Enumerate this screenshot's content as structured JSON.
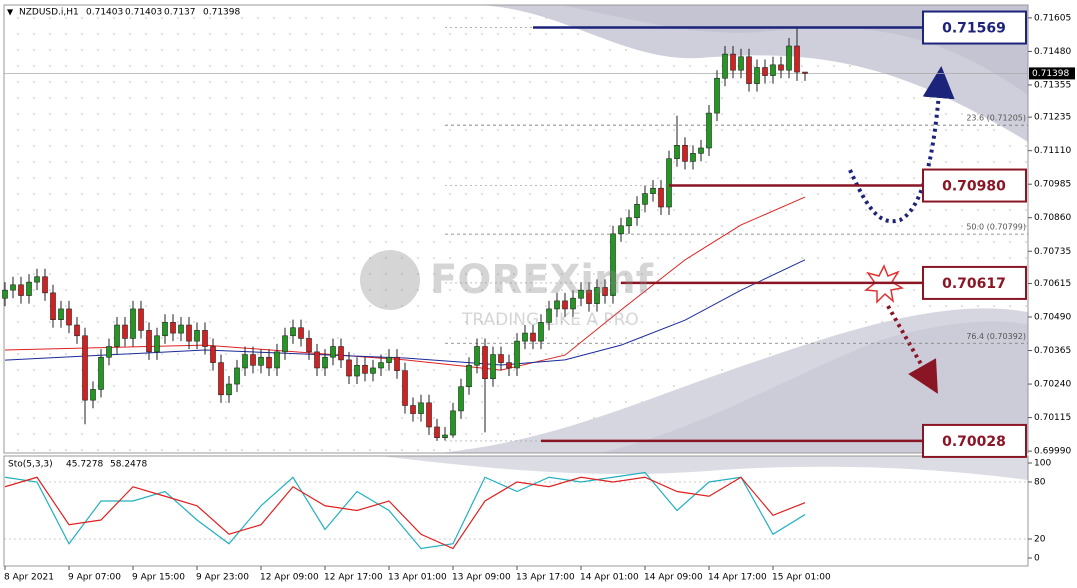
{
  "chart_data": {
    "type": "candlestick",
    "title": "NZDUSD.i,H1",
    "categories": [
      "8 Apr 2021",
      null,
      null,
      null,
      null,
      null,
      null,
      null,
      "9 Apr 07:00",
      null,
      null,
      null,
      null,
      null,
      null,
      null,
      "9 Apr 15:00",
      null,
      null,
      null,
      null,
      null,
      null,
      null,
      "9 Apr 23:00",
      null,
      null,
      null,
      null,
      null,
      null,
      null,
      "12 Apr 09:00",
      null,
      null,
      null,
      null,
      null,
      null,
      null,
      "12 Apr 17:00",
      null,
      null,
      null,
      null,
      null,
      null,
      null,
      "13 Apr 01:00",
      null,
      null,
      null,
      null,
      null,
      null,
      null,
      "13 Apr 09:00",
      null,
      null,
      null,
      null,
      null,
      null,
      null,
      "13 Apr 17:00",
      null,
      null,
      null,
      null,
      null,
      null,
      null,
      "14 Apr 01:00",
      null,
      null,
      null,
      null,
      null,
      null,
      null,
      "14 Apr 09:00",
      null,
      null,
      null,
      null,
      null,
      null,
      null,
      "14 Apr 17:00",
      null,
      null,
      null,
      null,
      null,
      null,
      null,
      "15 Apr 01:00",
      null,
      null,
      null,
      null
    ],
    "open": [
      0.7056,
      0.7059,
      0.7061,
      0.7057,
      0.7062,
      0.7064,
      0.7058,
      0.7048,
      0.7052,
      0.7046,
      0.7042,
      0.7018,
      0.7022,
      0.7034,
      0.7038,
      0.7046,
      0.7041,
      0.7052,
      0.7044,
      0.7036,
      0.7042,
      0.7047,
      0.7043,
      0.7046,
      0.704,
      0.7044,
      0.7038,
      0.7032,
      0.702,
      0.7024,
      0.703,
      0.7035,
      0.7031,
      0.7034,
      0.703,
      0.7036,
      0.7042,
      0.7045,
      0.7041,
      0.7036,
      0.703,
      0.7034,
      0.7038,
      0.7033,
      0.7027,
      0.7031,
      0.7028,
      0.703,
      0.7032,
      0.7034,
      0.7029,
      0.7016,
      0.7013,
      0.7017,
      0.7008,
      0.7004,
      0.7005,
      0.7014,
      0.7023,
      0.7031,
      0.7038,
      0.7026,
      0.7035,
      0.7032,
      0.703,
      0.704,
      0.7043,
      0.704,
      0.7047,
      0.7052,
      0.7055,
      0.7052,
      0.7056,
      0.7059,
      0.7054,
      0.706,
      0.7057,
      0.708,
      0.7083,
      0.7086,
      0.7091,
      0.7095,
      0.7097,
      0.709,
      0.7108,
      0.7113,
      0.7107,
      0.711,
      0.7112,
      0.7125,
      0.7138,
      0.7147,
      0.7141,
      0.7146,
      0.7136,
      0.7142,
      0.7139,
      0.7143,
      0.7141,
      0.715,
      0.71403
    ],
    "high": [
      0.7062,
      0.7064,
      0.7064,
      0.7065,
      0.7067,
      0.7067,
      0.7061,
      0.7055,
      0.7055,
      0.7049,
      0.7045,
      0.7025,
      0.7037,
      0.7041,
      0.7049,
      0.7049,
      0.7055,
      0.7055,
      0.7047,
      0.7045,
      0.705,
      0.705,
      0.7049,
      0.7049,
      0.7047,
      0.7047,
      0.7041,
      0.7035,
      0.7027,
      0.7033,
      0.7038,
      0.7038,
      0.7037,
      0.7037,
      0.7039,
      0.7045,
      0.7048,
      0.7048,
      0.7044,
      0.7039,
      0.7037,
      0.7041,
      0.7041,
      0.7036,
      0.7034,
      0.7034,
      0.7033,
      0.7035,
      0.7037,
      0.7037,
      0.7032,
      0.7019,
      0.702,
      0.702,
      0.7011,
      0.7008,
      0.7017,
      0.7026,
      0.7034,
      0.7041,
      0.7041,
      0.7038,
      0.7038,
      0.7035,
      0.7043,
      0.7046,
      0.7046,
      0.705,
      0.7055,
      0.7058,
      0.7058,
      0.7059,
      0.7062,
      0.7062,
      0.7063,
      0.7063,
      0.7083,
      0.7086,
      0.7089,
      0.7094,
      0.7098,
      0.71,
      0.71,
      0.7111,
      0.7124,
      0.7116,
      0.7113,
      0.7115,
      0.7128,
      0.7141,
      0.715,
      0.715,
      0.7149,
      0.7149,
      0.7145,
      0.7145,
      0.7146,
      0.7146,
      0.7153,
      0.71569,
      0.71403
    ],
    "low": [
      0.7053,
      0.7056,
      0.7054,
      0.7054,
      0.7059,
      0.7055,
      0.7045,
      0.7045,
      0.7043,
      0.7039,
      0.7009,
      0.7015,
      0.7019,
      0.7031,
      0.7035,
      0.7038,
      0.7038,
      0.7041,
      0.7033,
      0.7033,
      0.7039,
      0.704,
      0.704,
      0.7037,
      0.7037,
      0.7035,
      0.7029,
      0.7017,
      0.7017,
      0.7021,
      0.7027,
      0.7028,
      0.7028,
      0.7027,
      0.7027,
      0.7033,
      0.7039,
      0.7038,
      0.7033,
      0.7027,
      0.7027,
      0.7031,
      0.703,
      0.7024,
      0.7024,
      0.7025,
      0.7025,
      0.7027,
      0.7029,
      0.7026,
      0.7013,
      0.701,
      0.701,
      0.7005,
      0.70028,
      0.7003,
      0.7004,
      0.7011,
      0.702,
      0.7028,
      0.7006,
      0.7023,
      0.7029,
      0.7027,
      0.7027,
      0.7037,
      0.7037,
      0.7037,
      0.7044,
      0.7049,
      0.7049,
      0.7049,
      0.7053,
      0.7051,
      0.7051,
      0.7054,
      0.7054,
      0.7077,
      0.708,
      0.7083,
      0.7088,
      0.7092,
      0.7087,
      0.7087,
      0.7105,
      0.7104,
      0.7104,
      0.7107,
      0.7109,
      0.7122,
      0.7135,
      0.7138,
      0.7138,
      0.7133,
      0.7133,
      0.7136,
      0.7136,
      0.7138,
      0.7138,
      0.7137,
      0.7137
    ],
    "close": [
      0.7059,
      0.7061,
      0.7057,
      0.7062,
      0.7064,
      0.7058,
      0.7048,
      0.7052,
      0.7046,
      0.7042,
      0.7018,
      0.7022,
      0.7034,
      0.7038,
      0.7046,
      0.7041,
      0.7052,
      0.7044,
      0.7036,
      0.7042,
      0.7047,
      0.7043,
      0.7046,
      0.704,
      0.7044,
      0.7038,
      0.7032,
      0.702,
      0.7024,
      0.703,
      0.7035,
      0.7031,
      0.7034,
      0.703,
      0.7036,
      0.7042,
      0.7045,
      0.7041,
      0.7036,
      0.703,
      0.7034,
      0.7038,
      0.7033,
      0.7027,
      0.7031,
      0.7028,
      0.703,
      0.7032,
      0.7034,
      0.7029,
      0.7016,
      0.7013,
      0.7017,
      0.7008,
      0.7004,
      0.7005,
      0.7014,
      0.7023,
      0.7031,
      0.7038,
      0.7026,
      0.7035,
      0.7032,
      0.703,
      0.704,
      0.7043,
      0.704,
      0.7047,
      0.7052,
      0.7055,
      0.7052,
      0.7056,
      0.7059,
      0.7054,
      0.706,
      0.7057,
      0.708,
      0.7083,
      0.7086,
      0.7091,
      0.7095,
      0.7097,
      0.709,
      0.7108,
      0.7113,
      0.7107,
      0.711,
      0.7112,
      0.7125,
      0.7138,
      0.7147,
      0.7141,
      0.7146,
      0.7136,
      0.7142,
      0.7139,
      0.7143,
      0.7141,
      0.715,
      0.71403,
      0.71398
    ],
    "up_color": "#1f9a1f",
    "down_color": "#d42020",
    "ylim": [
      0.69983,
      0.71653
    ],
    "yticks": [
      0.71605,
      {
        "value": 0.7148,
        "label": "0.71480"
      },
      0.71355,
      0.71235,
      {
        "value": 0.7111,
        "label": "0.71110"
      },
      0.70985,
      {
        "value": 0.7086,
        "label": "0.70860"
      },
      {
        "value": 0.70735,
        "label": "0.70735"
      },
      0.70615,
      {
        "value": 0.7049,
        "label": "0.70490"
      },
      0.70365,
      {
        "value": 0.7024,
        "label": "0.70240"
      },
      0.70115,
      {
        "value": 0.6999,
        "label": "0.69990"
      }
    ],
    "moving_averages": [
      {
        "color": "#e02020",
        "x": [
          0,
          25,
          50,
          62,
          70,
          77,
          85,
          92,
          100
        ],
        "values": [
          0.70367,
          0.70385,
          0.7033,
          0.70292,
          0.70348,
          0.70516,
          0.70703,
          0.70833,
          0.70937
        ]
      },
      {
        "color": "#1a2a9a",
        "x": [
          0,
          25,
          50,
          62,
          70,
          77,
          85,
          92,
          100
        ],
        "values": [
          0.70329,
          0.70367,
          0.70337,
          0.70311,
          0.7033,
          0.70385,
          0.70478,
          0.7059,
          0.70703
        ]
      }
    ],
    "fib_levels": [
      {
        "value": 0.71205,
        "label": "23.6 (0.71205)"
      },
      {
        "value": 0.70799,
        "label": "50.0 (0.70799)"
      },
      {
        "value": 0.70392,
        "label": "76.4 (0.70392)"
      }
    ],
    "levels": [
      {
        "value": 0.71569,
        "color": "#1c237a"
      },
      {
        "value": 0.7098,
        "label": "0.70980",
        "color": "#8a1525"
      },
      {
        "value": 0.70617,
        "color": "#8a1525"
      },
      {
        "value": 0.70028,
        "color": "#8a1525"
      }
    ],
    "watermark": {
      "brand": "FOREXimf",
      "tagline": "TRADING LIKE A PRO"
    },
    "stochastic": {
      "name": "Sto(5,3,3)",
      "ylim": [
        0,
        100
      ],
      "yticks": [
        100,
        80,
        20,
        0
      ],
      "series": [
        {
          "color": "#20b0c0",
          "x": [
            0,
            4,
            8,
            12,
            16,
            20,
            24,
            28,
            32,
            36,
            40,
            44,
            48,
            52,
            56,
            60,
            64,
            68,
            72,
            76,
            80,
            84,
            88,
            92,
            96,
            100
          ],
          "values": [
            85,
            80,
            15,
            60,
            60,
            70,
            40,
            15,
            55,
            85,
            30,
            70,
            50,
            10,
            15,
            85,
            70,
            85,
            80,
            85,
            90,
            50,
            80,
            85,
            25,
            45.7278
          ]
        },
        {
          "color": "#e02020",
          "x": [
            0,
            4,
            8,
            12,
            16,
            20,
            24,
            28,
            32,
            36,
            40,
            44,
            48,
            52,
            56,
            60,
            64,
            68,
            72,
            76,
            80,
            84,
            88,
            92,
            96,
            100
          ],
          "values": [
            75,
            85,
            35,
            40,
            75,
            65,
            55,
            25,
            35,
            75,
            55,
            50,
            60,
            25,
            10,
            60,
            80,
            75,
            85,
            80,
            85,
            70,
            65,
            85,
            45,
            58.2478
          ]
        }
      ]
    }
  }
}
